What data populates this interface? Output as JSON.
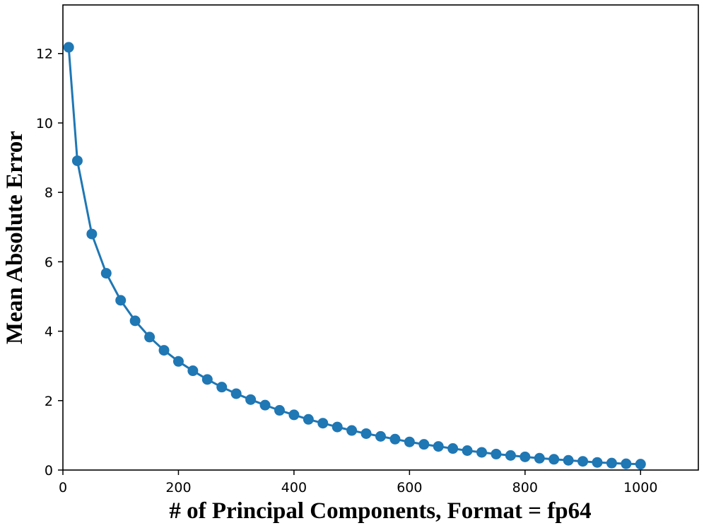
{
  "chart_data": {
    "type": "line",
    "title": "",
    "xlabel": "# of Principal Components, Format = fp64",
    "ylabel": "Mean Absolute Error",
    "xlim": [
      0,
      1100
    ],
    "ylim": [
      0,
      13.4
    ],
    "xticks": [
      0,
      200,
      400,
      600,
      800,
      1000
    ],
    "yticks": [
      0,
      2,
      4,
      6,
      8,
      10,
      12
    ],
    "grid": false,
    "legend": "none",
    "colors": {
      "series": "#1f77b4",
      "axes": "#000000"
    },
    "series": [
      {
        "marker": "circle",
        "x": [
          10,
          25,
          50,
          75,
          100,
          125,
          150,
          175,
          200,
          225,
          250,
          275,
          300,
          325,
          350,
          375,
          400,
          425,
          450,
          475,
          500,
          525,
          550,
          575,
          600,
          625,
          650,
          675,
          700,
          725,
          750,
          775,
          800,
          825,
          850,
          875,
          900,
          925,
          950,
          975,
          1000
        ],
        "y": [
          12.18,
          8.91,
          6.8,
          5.67,
          4.89,
          4.3,
          3.83,
          3.45,
          3.13,
          2.86,
          2.61,
          2.39,
          2.2,
          2.03,
          1.87,
          1.72,
          1.59,
          1.46,
          1.35,
          1.24,
          1.14,
          1.05,
          0.97,
          0.89,
          0.81,
          0.74,
          0.68,
          0.62,
          0.56,
          0.51,
          0.46,
          0.42,
          0.38,
          0.34,
          0.31,
          0.28,
          0.25,
          0.22,
          0.2,
          0.18,
          0.17
        ]
      }
    ]
  }
}
